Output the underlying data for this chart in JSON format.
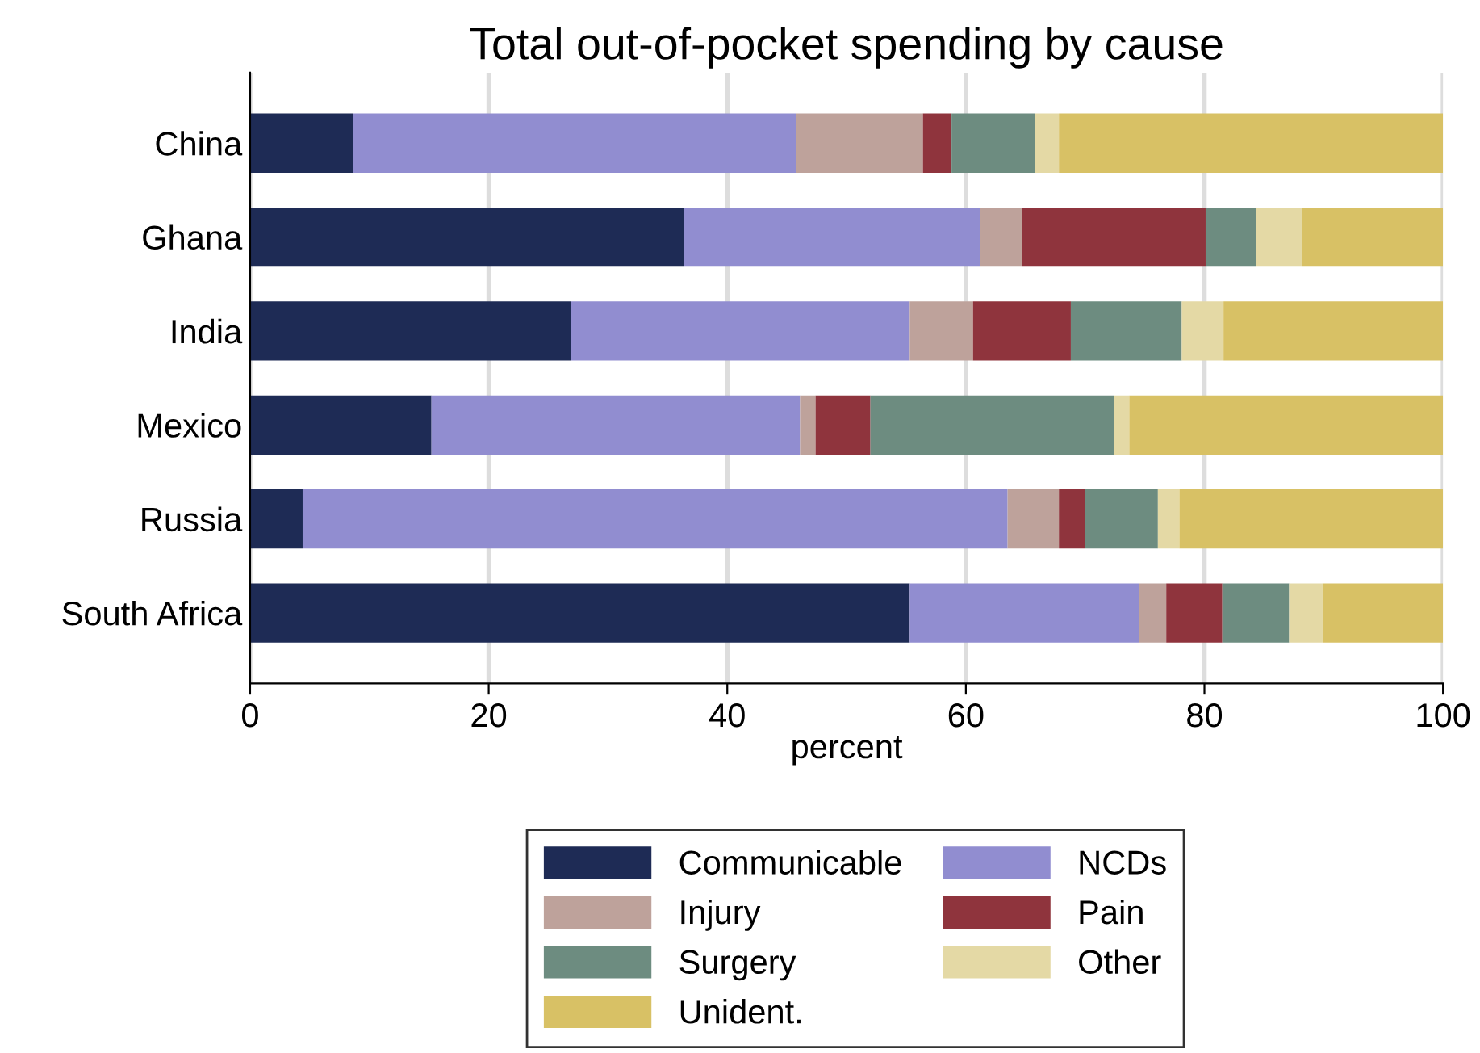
{
  "chart_data": {
    "type": "bar",
    "orientation": "horizontal",
    "stacked": true,
    "title": "Total out-of-pocket spending by cause",
    "xlabel": "percent",
    "categories": [
      "China",
      "Ghana",
      "India",
      "Mexico",
      "Russia",
      "South Africa"
    ],
    "series": [
      {
        "name": "Communicable",
        "color": "#1e2b55",
        "values": [
          8.6,
          36.4,
          26.9,
          15.2,
          4.4,
          55.3
        ]
      },
      {
        "name": "NCDs",
        "color": "#918dd0",
        "values": [
          37.2,
          24.8,
          28.4,
          30.9,
          59.1,
          19.2
        ]
      },
      {
        "name": "Injury",
        "color": "#bea29b",
        "values": [
          10.6,
          3.5,
          5.3,
          1.3,
          4.3,
          2.3
        ]
      },
      {
        "name": "Pain",
        "color": "#8f343d",
        "values": [
          2.4,
          15.4,
          8.2,
          4.6,
          2.2,
          4.7
        ]
      },
      {
        "name": "Surgery",
        "color": "#6d8c80",
        "values": [
          7.0,
          4.2,
          9.3,
          20.4,
          6.1,
          5.6
        ]
      },
      {
        "name": "Other",
        "color": "#e4d9a5",
        "values": [
          2.0,
          3.9,
          3.5,
          1.3,
          1.8,
          2.8
        ]
      },
      {
        "name": "Unident.",
        "color": "#d8c165",
        "values": [
          32.2,
          11.8,
          18.4,
          26.3,
          22.1,
          10.1
        ]
      }
    ],
    "xlim": [
      0,
      100
    ],
    "xticks": [
      0,
      20,
      40,
      60,
      80,
      100
    ],
    "grid": "x",
    "legend": "bottom"
  }
}
